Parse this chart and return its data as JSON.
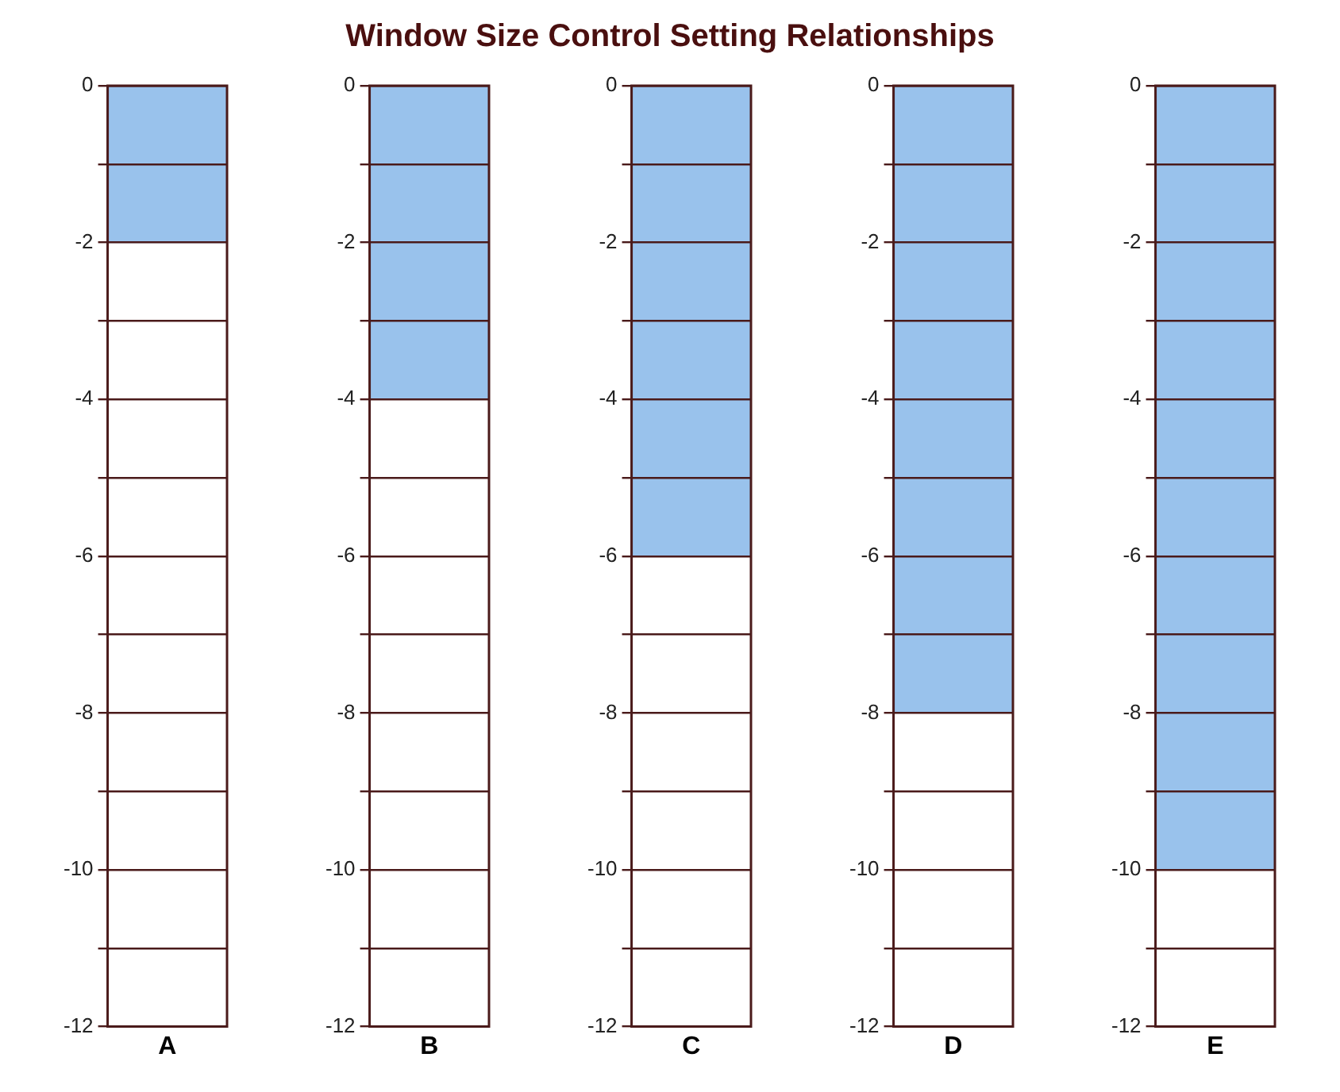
{
  "chart_data": [
    {
      "type": "bar",
      "categories": [
        "A"
      ],
      "values": [
        -2
      ],
      "color": "#99c2ec",
      "ylim": [
        -12,
        0
      ],
      "yticks": [
        -12,
        {
          "value": -11,
          "label": null
        },
        -10,
        {
          "value": -9,
          "label": null
        },
        -8,
        {
          "value": -7,
          "label": null
        },
        -6,
        {
          "value": -5,
          "label": null
        },
        -4,
        {
          "value": -3,
          "label": null
        },
        -2,
        {
          "value": -1,
          "label": null
        },
        0
      ],
      "grid": "y"
    },
    {
      "type": "bar",
      "categories": [
        "B"
      ],
      "values": [
        -4
      ],
      "color": "#99c2ec",
      "ylim": [
        -12,
        0
      ],
      "yticks": [
        -12,
        {
          "value": -11,
          "label": null
        },
        -10,
        {
          "value": -9,
          "label": null
        },
        -8,
        {
          "value": -7,
          "label": null
        },
        -6,
        {
          "value": -5,
          "label": null
        },
        -4,
        {
          "value": -3,
          "label": null
        },
        -2,
        {
          "value": -1,
          "label": null
        },
        0
      ],
      "grid": "y"
    },
    {
      "type": "bar",
      "title": "Window Size Control Setting Relationships",
      "categories": [
        "C"
      ],
      "values": [
        -6
      ],
      "color": "#99c2ec",
      "ylim": [
        -12,
        0
      ],
      "yticks": [
        -12,
        {
          "value": -11,
          "label": null
        },
        -10,
        {
          "value": -9,
          "label": null
        },
        -8,
        {
          "value": -7,
          "label": null
        },
        -6,
        {
          "value": -5,
          "label": null
        },
        -4,
        {
          "value": -3,
          "label": null
        },
        -2,
        {
          "value": -1,
          "label": null
        },
        0
      ],
      "grid": "y"
    },
    {
      "type": "bar",
      "categories": [
        "D"
      ],
      "values": [
        -8
      ],
      "color": "#99c2ec",
      "ylim": [
        -12,
        0
      ],
      "yticks": [
        -12,
        {
          "value": -11,
          "label": null
        },
        -10,
        {
          "value": -9,
          "label": null
        },
        -8,
        {
          "value": -7,
          "label": null
        },
        -6,
        {
          "value": -5,
          "label": null
        },
        -4,
        {
          "value": -3,
          "label": null
        },
        -2,
        {
          "value": -1,
          "label": null
        },
        0
      ],
      "grid": "y"
    },
    {
      "type": "bar",
      "categories": [
        "E"
      ],
      "values": [
        -10
      ],
      "color": "#99c2ec",
      "ylim": [
        -12,
        0
      ],
      "yticks": [
        -12,
        {
          "value": -11,
          "label": null
        },
        -10,
        {
          "value": -9,
          "label": null
        },
        -8,
        {
          "value": -7,
          "label": null
        },
        -6,
        {
          "value": -5,
          "label": null
        },
        -4,
        {
          "value": -3,
          "label": null
        },
        -2,
        {
          "value": -1,
          "label": null
        },
        0
      ],
      "grid": "y"
    }
  ]
}
